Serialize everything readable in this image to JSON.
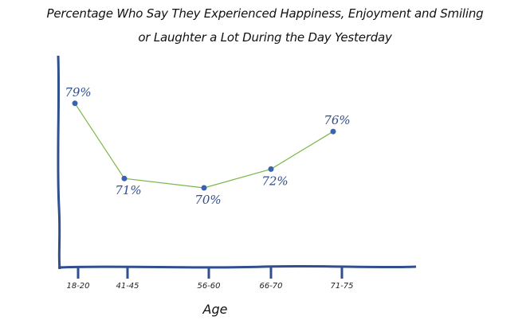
{
  "chart_data": {
    "type": "line",
    "title": "Percentage Who Say They Experienced Happiness, Enjoyment and Smiling or Laughter a Lot During the Day Yesterday",
    "title_lines": [
      "Percentage Who Say They Experienced Happiness, Enjoyment and Smiling",
      "or Laughter a Lot During the Day Yesterday"
    ],
    "categories": [
      "18-20",
      "41-45",
      "56-60",
      "66-70",
      "71-75"
    ],
    "values": [
      79,
      71,
      70,
      72,
      76
    ],
    "data_labels": [
      "79%",
      "71%",
      "70%",
      "72%",
      "76%"
    ],
    "xlabel": "Age",
    "ylabel": "",
    "ylim": [
      62,
      81
    ],
    "grid": false,
    "legend": "none",
    "colors": {
      "line": "#7ab648",
      "marker": "#3a62b0",
      "axis": "#2f4f8f",
      "label": "#2f4f8f"
    }
  }
}
